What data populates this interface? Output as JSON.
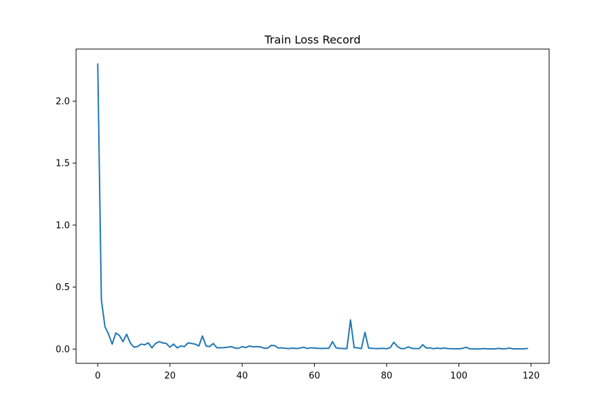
{
  "chart_data": {
    "type": "line",
    "title": "Train Loss Record",
    "xlabel": "",
    "ylabel": "",
    "xlim": [
      -6,
      125
    ],
    "ylim": [
      -0.115,
      2.42
    ],
    "xticks": [
      0,
      20,
      40,
      60,
      80,
      100,
      120
    ],
    "yticks": [
      0.0,
      0.5,
      1.0,
      1.5,
      2.0
    ],
    "xtick_labels": [
      "0",
      "20",
      "40",
      "60",
      "80",
      "100",
      "120"
    ],
    "ytick_labels": [
      "0.0",
      "0.5",
      "1.0",
      "1.5",
      "2.0"
    ],
    "grid": false,
    "legend": "none",
    "line_color": "#1f77b4",
    "series": [
      {
        "x": [
          0,
          1,
          2,
          3,
          4,
          5,
          6,
          7,
          8,
          9,
          10,
          11,
          12,
          13,
          14,
          15,
          16,
          17,
          18,
          19,
          20,
          21,
          22,
          23,
          24,
          25,
          26,
          27,
          28,
          29,
          30,
          31,
          32,
          33,
          34,
          35,
          36,
          37,
          38,
          39,
          40,
          41,
          42,
          43,
          44,
          45,
          46,
          47,
          48,
          49,
          50,
          51,
          52,
          53,
          54,
          55,
          56,
          57,
          58,
          59,
          60,
          61,
          62,
          63,
          64,
          65,
          66,
          67,
          68,
          69,
          70,
          71,
          72,
          73,
          74,
          75,
          76,
          77,
          78,
          79,
          80,
          81,
          82,
          83,
          84,
          85,
          86,
          87,
          88,
          89,
          90,
          91,
          92,
          93,
          94,
          95,
          96,
          97,
          98,
          99,
          100,
          101,
          102,
          103,
          104,
          105,
          106,
          107,
          108,
          109,
          110,
          111,
          112,
          113,
          114,
          115,
          116,
          117,
          118,
          119
        ],
        "values": [
          2.3,
          0.4,
          0.18,
          0.12,
          0.04,
          0.13,
          0.11,
          0.06,
          0.12,
          0.05,
          0.015,
          0.02,
          0.04,
          0.035,
          0.05,
          0.01,
          0.045,
          0.06,
          0.05,
          0.045,
          0.015,
          0.04,
          0.01,
          0.025,
          0.02,
          0.05,
          0.045,
          0.04,
          0.025,
          0.105,
          0.025,
          0.02,
          0.045,
          0.01,
          0.01,
          0.012,
          0.015,
          0.02,
          0.008,
          0.006,
          0.02,
          0.012,
          0.025,
          0.018,
          0.02,
          0.018,
          0.008,
          0.006,
          0.03,
          0.028,
          0.008,
          0.01,
          0.006,
          0.004,
          0.008,
          0.004,
          0.008,
          0.015,
          0.005,
          0.01,
          0.008,
          0.006,
          0.005,
          0.006,
          0.006,
          0.06,
          0.01,
          0.006,
          0.004,
          0.004,
          0.235,
          0.012,
          0.01,
          0.004,
          0.135,
          0.008,
          0.006,
          0.004,
          0.004,
          0.006,
          0.003,
          0.012,
          0.055,
          0.02,
          0.004,
          0.004,
          0.018,
          0.006,
          0.004,
          0.004,
          0.035,
          0.008,
          0.01,
          0.003,
          0.008,
          0.004,
          0.008,
          0.004,
          0.003,
          0.003,
          0.002,
          0.006,
          0.015,
          0.002,
          0.001,
          0.001,
          0.002,
          0.004,
          0.001,
          0.002,
          0.001,
          0.006,
          0.002,
          0.003,
          0.008,
          0.002,
          0.002,
          0.001,
          0.003,
          0.005
        ]
      }
    ]
  }
}
